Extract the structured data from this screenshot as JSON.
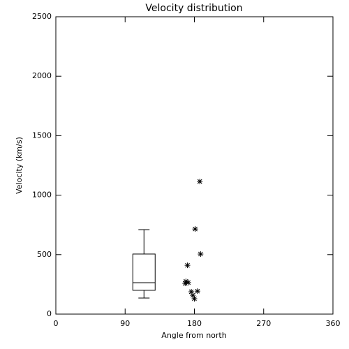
{
  "chart_data": {
    "type": "scatter",
    "title": "Velocity distribution",
    "x_label": "Angle from north",
    "y_label": "Velocity (km/s)",
    "xlim": [
      0,
      360
    ],
    "xticks": [
      0,
      90,
      180,
      270,
      360
    ],
    "ylim": [
      0,
      2500
    ],
    "yticks": [
      0,
      500,
      1000,
      1500,
      2000,
      2500
    ],
    "color": "#000000",
    "x": [
      187,
      181,
      188,
      171,
      169,
      172,
      168,
      176,
      184,
      178,
      180
    ],
    "values": [
      1115,
      715,
      505,
      410,
      275,
      265,
      258,
      188,
      193,
      158,
      129
    ],
    "box": {
      "xlim": [
        100,
        129
      ],
      "whisker_low": 135,
      "q1": 200,
      "median": 264,
      "q3": 505,
      "whisker_high": 710
    }
  }
}
